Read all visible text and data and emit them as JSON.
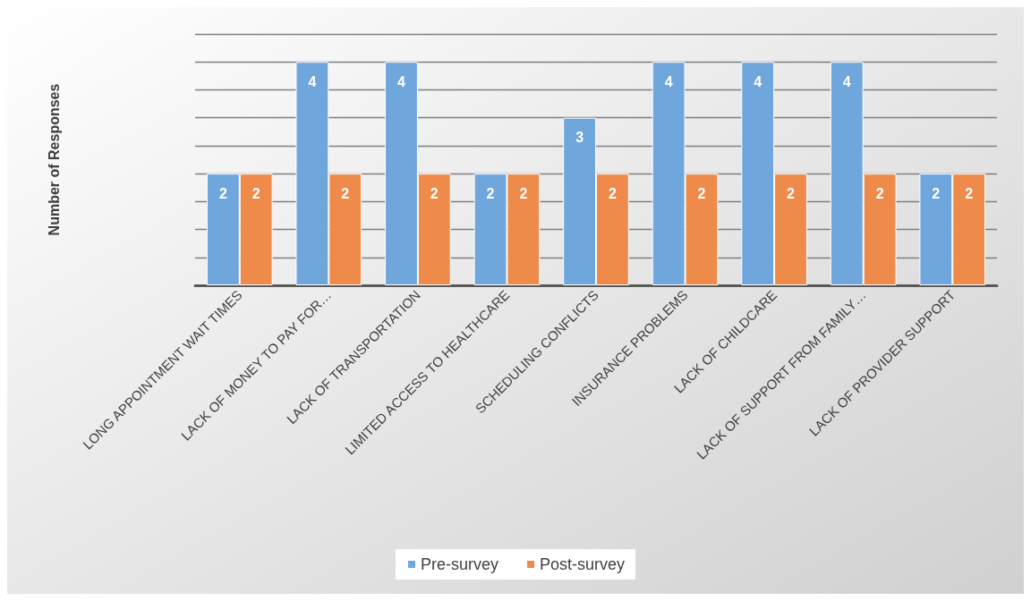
{
  "chart_data": {
    "type": "bar",
    "ylabel": "Number of Responses",
    "categories": [
      "LONG APPOINTMENT WAIT TIMES",
      "LACK OF MONEY TO PAY FOR…",
      "LACK OF TRANSPORTATION",
      "LIMITED ACCESS TO HEALTHCARE",
      "SCHEDULING CONFLICTS",
      "INSURANCE PROBLEMS",
      "LACK OF CHILDCARE",
      "LACK OF SUPPORT FROM FAMILY…",
      "LACK OF PROVIDER SUPPORT"
    ],
    "series": [
      {
        "name": "Pre-survey",
        "color": "#6fa6dc",
        "values": [
          2,
          4,
          4,
          2,
          3,
          4,
          4,
          4,
          2
        ]
      },
      {
        "name": "Post-survey",
        "color": "#ef8b4a",
        "values": [
          2,
          2,
          2,
          2,
          2,
          2,
          2,
          2,
          2
        ]
      }
    ],
    "ylim": [
      0,
      4.5
    ],
    "yticks": [
      {
        "value": 0,
        "label": null
      },
      {
        "value": 0.5,
        "label": null
      },
      {
        "value": 1,
        "label": null
      },
      {
        "value": 1.5,
        "label": null
      },
      {
        "value": 2,
        "label": null
      },
      {
        "value": 2.5,
        "label": null
      },
      {
        "value": 3,
        "label": null
      },
      {
        "value": 3.5,
        "label": null
      },
      {
        "value": 4,
        "label": null
      },
      {
        "value": 4.5,
        "label": null
      }
    ],
    "tick_labels": "x",
    "grid": "y",
    "legend": "bottom",
    "data_labels": true
  }
}
